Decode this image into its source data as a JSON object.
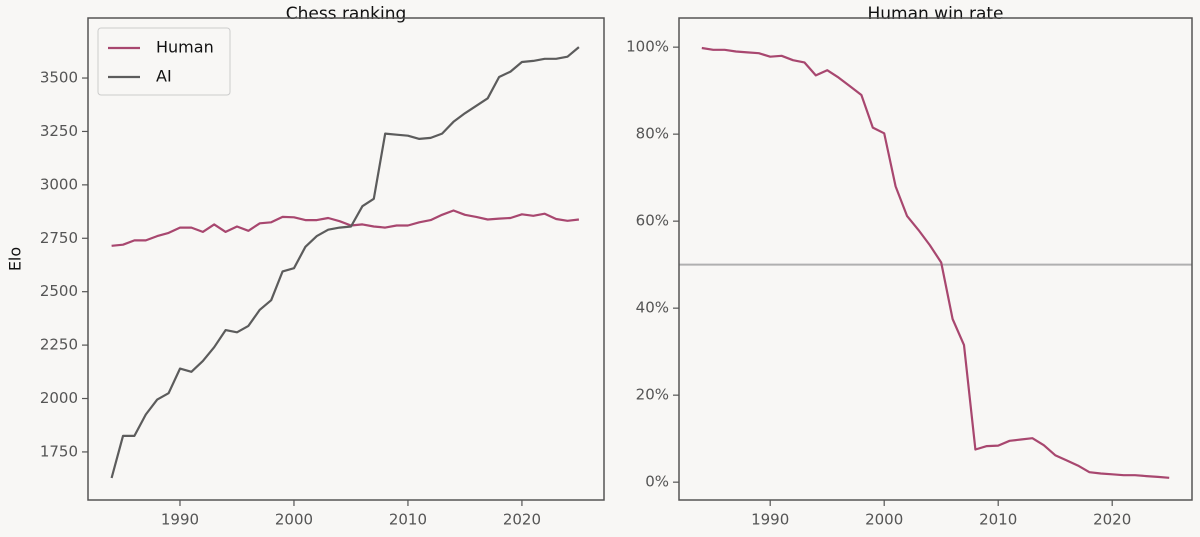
{
  "chart_data": [
    {
      "type": "line",
      "title": "Chess ranking",
      "y_label": "Elo",
      "x": [
        1984,
        1985,
        1986,
        1987,
        1988,
        1989,
        1990,
        1991,
        1992,
        1993,
        1994,
        1995,
        1996,
        1997,
        1998,
        1999,
        2000,
        2001,
        2002,
        2003,
        2004,
        2005,
        2006,
        2007,
        2008,
        2009,
        2010,
        2011,
        2012,
        2013,
        2014,
        2015,
        2016,
        2017,
        2018,
        2019,
        2020,
        2021,
        2022,
        2023,
        2024,
        2025
      ],
      "series": [
        {
          "name": "Human",
          "color": "#a8476f",
          "values": [
            2715,
            2720,
            2740,
            2740,
            2760,
            2775,
            2800,
            2800,
            2780,
            2815,
            2780,
            2805,
            2785,
            2820,
            2825,
            2850,
            2848,
            2835,
            2835,
            2845,
            2830,
            2810,
            2815,
            2805,
            2800,
            2810,
            2810,
            2825,
            2835,
            2860,
            2880,
            2860,
            2850,
            2838,
            2842,
            2845,
            2862,
            2855,
            2865,
            2840,
            2832,
            2838
          ]
        },
        {
          "name": "AI",
          "color": "#5c5c5c",
          "values": [
            1628,
            1825,
            1825,
            1925,
            1995,
            2025,
            2140,
            2125,
            2175,
            2240,
            2320,
            2310,
            2340,
            2415,
            2460,
            2595,
            2610,
            2710,
            2760,
            2790,
            2800,
            2805,
            2900,
            2935,
            3240,
            3235,
            3230,
            3215,
            3220,
            3240,
            3295,
            3335,
            3370,
            3405,
            3505,
            3530,
            3575,
            3580,
            3590,
            3590,
            3600,
            3645
          ]
        }
      ],
      "xlim": [
        1981.93,
        2027.2
      ],
      "xticks": [
        1990,
        2000,
        2010,
        2020
      ],
      "ylim": [
        1525,
        3781
      ],
      "yticks": [
        1750,
        2000,
        2250,
        2500,
        2750,
        3000,
        3250,
        3500
      ],
      "legend": "upper left"
    },
    {
      "type": "line",
      "title": "Human win rate",
      "color": "#a8476f",
      "x": [
        1984,
        1985,
        1986,
        1987,
        1988,
        1989,
        1990,
        1991,
        1992,
        1993,
        1994,
        1995,
        1996,
        1997,
        1998,
        1999,
        2000,
        2001,
        2002,
        2003,
        2004,
        2005,
        2006,
        2007,
        2008,
        2009,
        2010,
        2011,
        2012,
        2013,
        2014,
        2015,
        2016,
        2017,
        2018,
        2019,
        2020,
        2021,
        2022,
        2023,
        2024,
        2025
      ],
      "values": [
        99.8,
        99.4,
        99.4,
        99.0,
        98.8,
        98.6,
        97.8,
        98.0,
        97.0,
        96.5,
        93.5,
        94.7,
        93.0,
        91.0,
        89.0,
        81.5,
        80.2,
        68.0,
        61.2,
        58.0,
        54.5,
        50.5,
        37.5,
        31.5,
        7.5,
        8.3,
        8.4,
        9.5,
        9.8,
        10.1,
        8.5,
        6.2,
        5.0,
        3.8,
        2.3,
        2.0,
        1.8,
        1.6,
        1.6,
        1.4,
        1.2,
        1.0
      ],
      "xlim": [
        1982.0,
        2027.0
      ],
      "xticks": [
        1990,
        2000,
        2010,
        2020
      ],
      "ylim": [
        -4.1,
        106.7
      ],
      "yticks": [
        {
          "value": 0,
          "label": "0%"
        },
        {
          "value": 20,
          "label": "20%"
        },
        {
          "value": 40,
          "label": "40%"
        },
        {
          "value": 60,
          "label": "60%"
        },
        {
          "value": 80,
          "label": "80%"
        },
        {
          "value": 100,
          "label": "100%"
        }
      ],
      "hline": 50,
      "hline_color": "#b0b0b0"
    }
  ]
}
